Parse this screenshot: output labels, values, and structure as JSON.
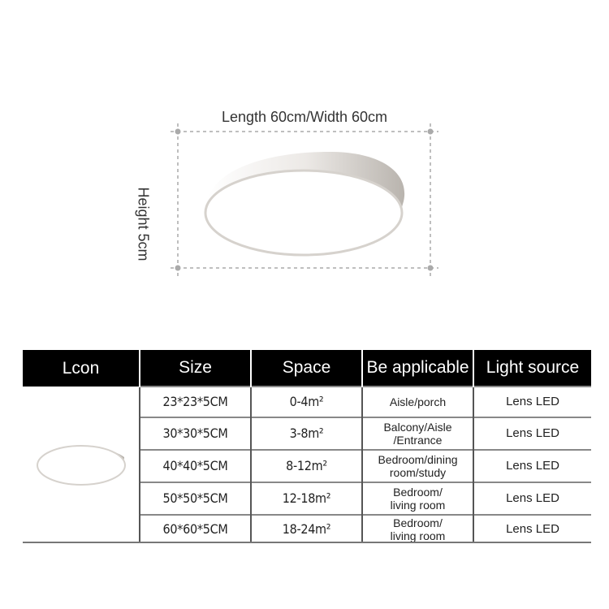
{
  "diagram": {
    "dimension_label": "Length 60cm/Width 60cm",
    "height_label": "Height 5cm"
  },
  "table": {
    "headers": [
      "Lcon",
      "Size",
      "Space",
      "Be applicable",
      "Light source"
    ],
    "rows": [
      {
        "size": "23*23*5CM",
        "space": "0-4m²",
        "use_line1": "Aisle/porch",
        "use_line2": "",
        "light": "Lens LED"
      },
      {
        "size": "30*30*5CM",
        "space": "3-8m²",
        "use_line1": "Balcony/Aisle",
        "use_line2": "/Entrance",
        "light": "Lens LED"
      },
      {
        "size": "40*40*5CM",
        "space": "8-12m²",
        "use_line1": "Bedroom/dining",
        "use_line2": "room/study",
        "light": "Lens LED"
      },
      {
        "size": "50*50*5CM",
        "space": "12-18m²",
        "use_line1": "Bedroom/",
        "use_line2": "living room",
        "light": "Lens LED"
      },
      {
        "size": "60*60*5CM",
        "space": "18-24m²",
        "use_line1": "Bedroom/",
        "use_line2": "living room",
        "light": "Lens LED"
      }
    ]
  },
  "colors": {
    "header_bg": "#000000",
    "header_text": "#ffffff",
    "guide_line": "#aaaaaa"
  }
}
